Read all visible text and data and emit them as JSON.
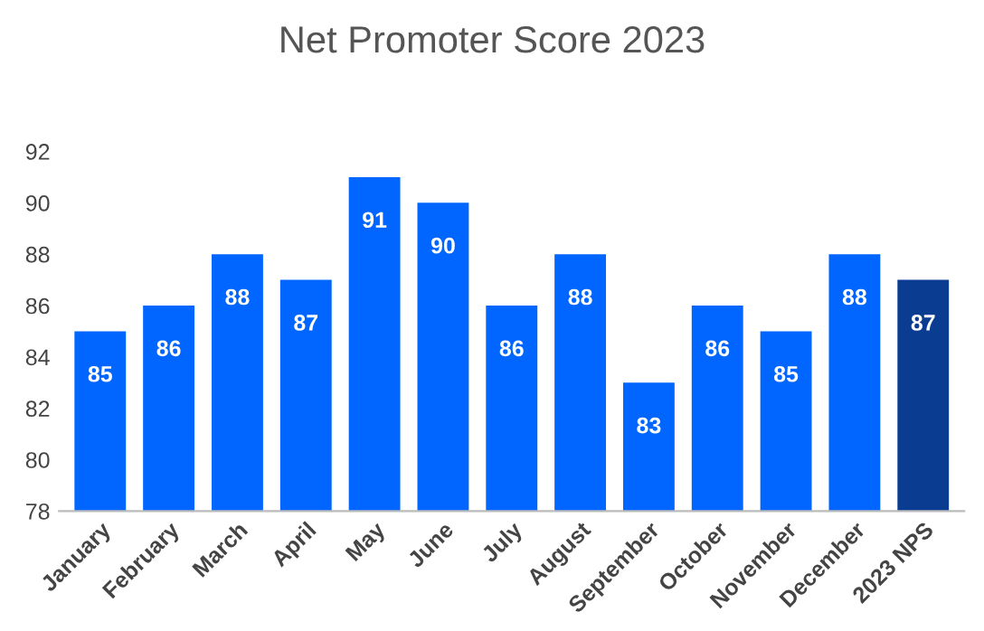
{
  "chart_data": {
    "type": "bar",
    "title": "Net Promoter Score 2023",
    "categories": [
      "January",
      "February",
      "March",
      "April",
      "May",
      "June",
      "July",
      "August",
      "September",
      "October",
      "November",
      "December",
      "2023 NPS"
    ],
    "values": [
      85,
      86,
      88,
      87,
      91,
      90,
      86,
      88,
      83,
      86,
      85,
      88,
      87
    ],
    "colors": [
      "#0066ff",
      "#0066ff",
      "#0066ff",
      "#0066ff",
      "#0066ff",
      "#0066ff",
      "#0066ff",
      "#0066ff",
      "#0066ff",
      "#0066ff",
      "#0066ff",
      "#0066ff",
      "#0a3d91"
    ],
    "ylim": [
      78,
      92
    ],
    "yticks": [
      78,
      80,
      82,
      84,
      86,
      88,
      90,
      92
    ],
    "grid": false,
    "data_labels": true,
    "legend": false
  }
}
